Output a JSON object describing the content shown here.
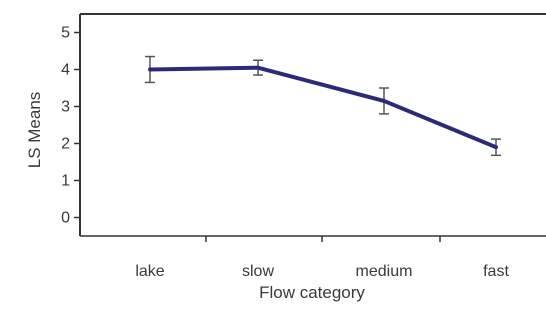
{
  "chart_data": {
    "type": "line",
    "title": "",
    "xlabel": "Flow category",
    "ylabel": "LS Means",
    "categories": [
      "lake",
      "slow",
      "medium",
      "fast"
    ],
    "series": [
      {
        "values": [
          4.0,
          4.05,
          3.15,
          1.9
        ],
        "error": [
          0.35,
          0.2,
          0.35,
          0.22
        ]
      }
    ],
    "ylim": [
      -0.5,
      5.5
    ],
    "yticks": [
      0,
      1,
      2,
      3,
      4,
      5
    ],
    "grid": false,
    "colors": {
      "line": "#2a2a78",
      "errorbar": "#555555",
      "axis": "#333333",
      "frame": "#333333"
    }
  }
}
